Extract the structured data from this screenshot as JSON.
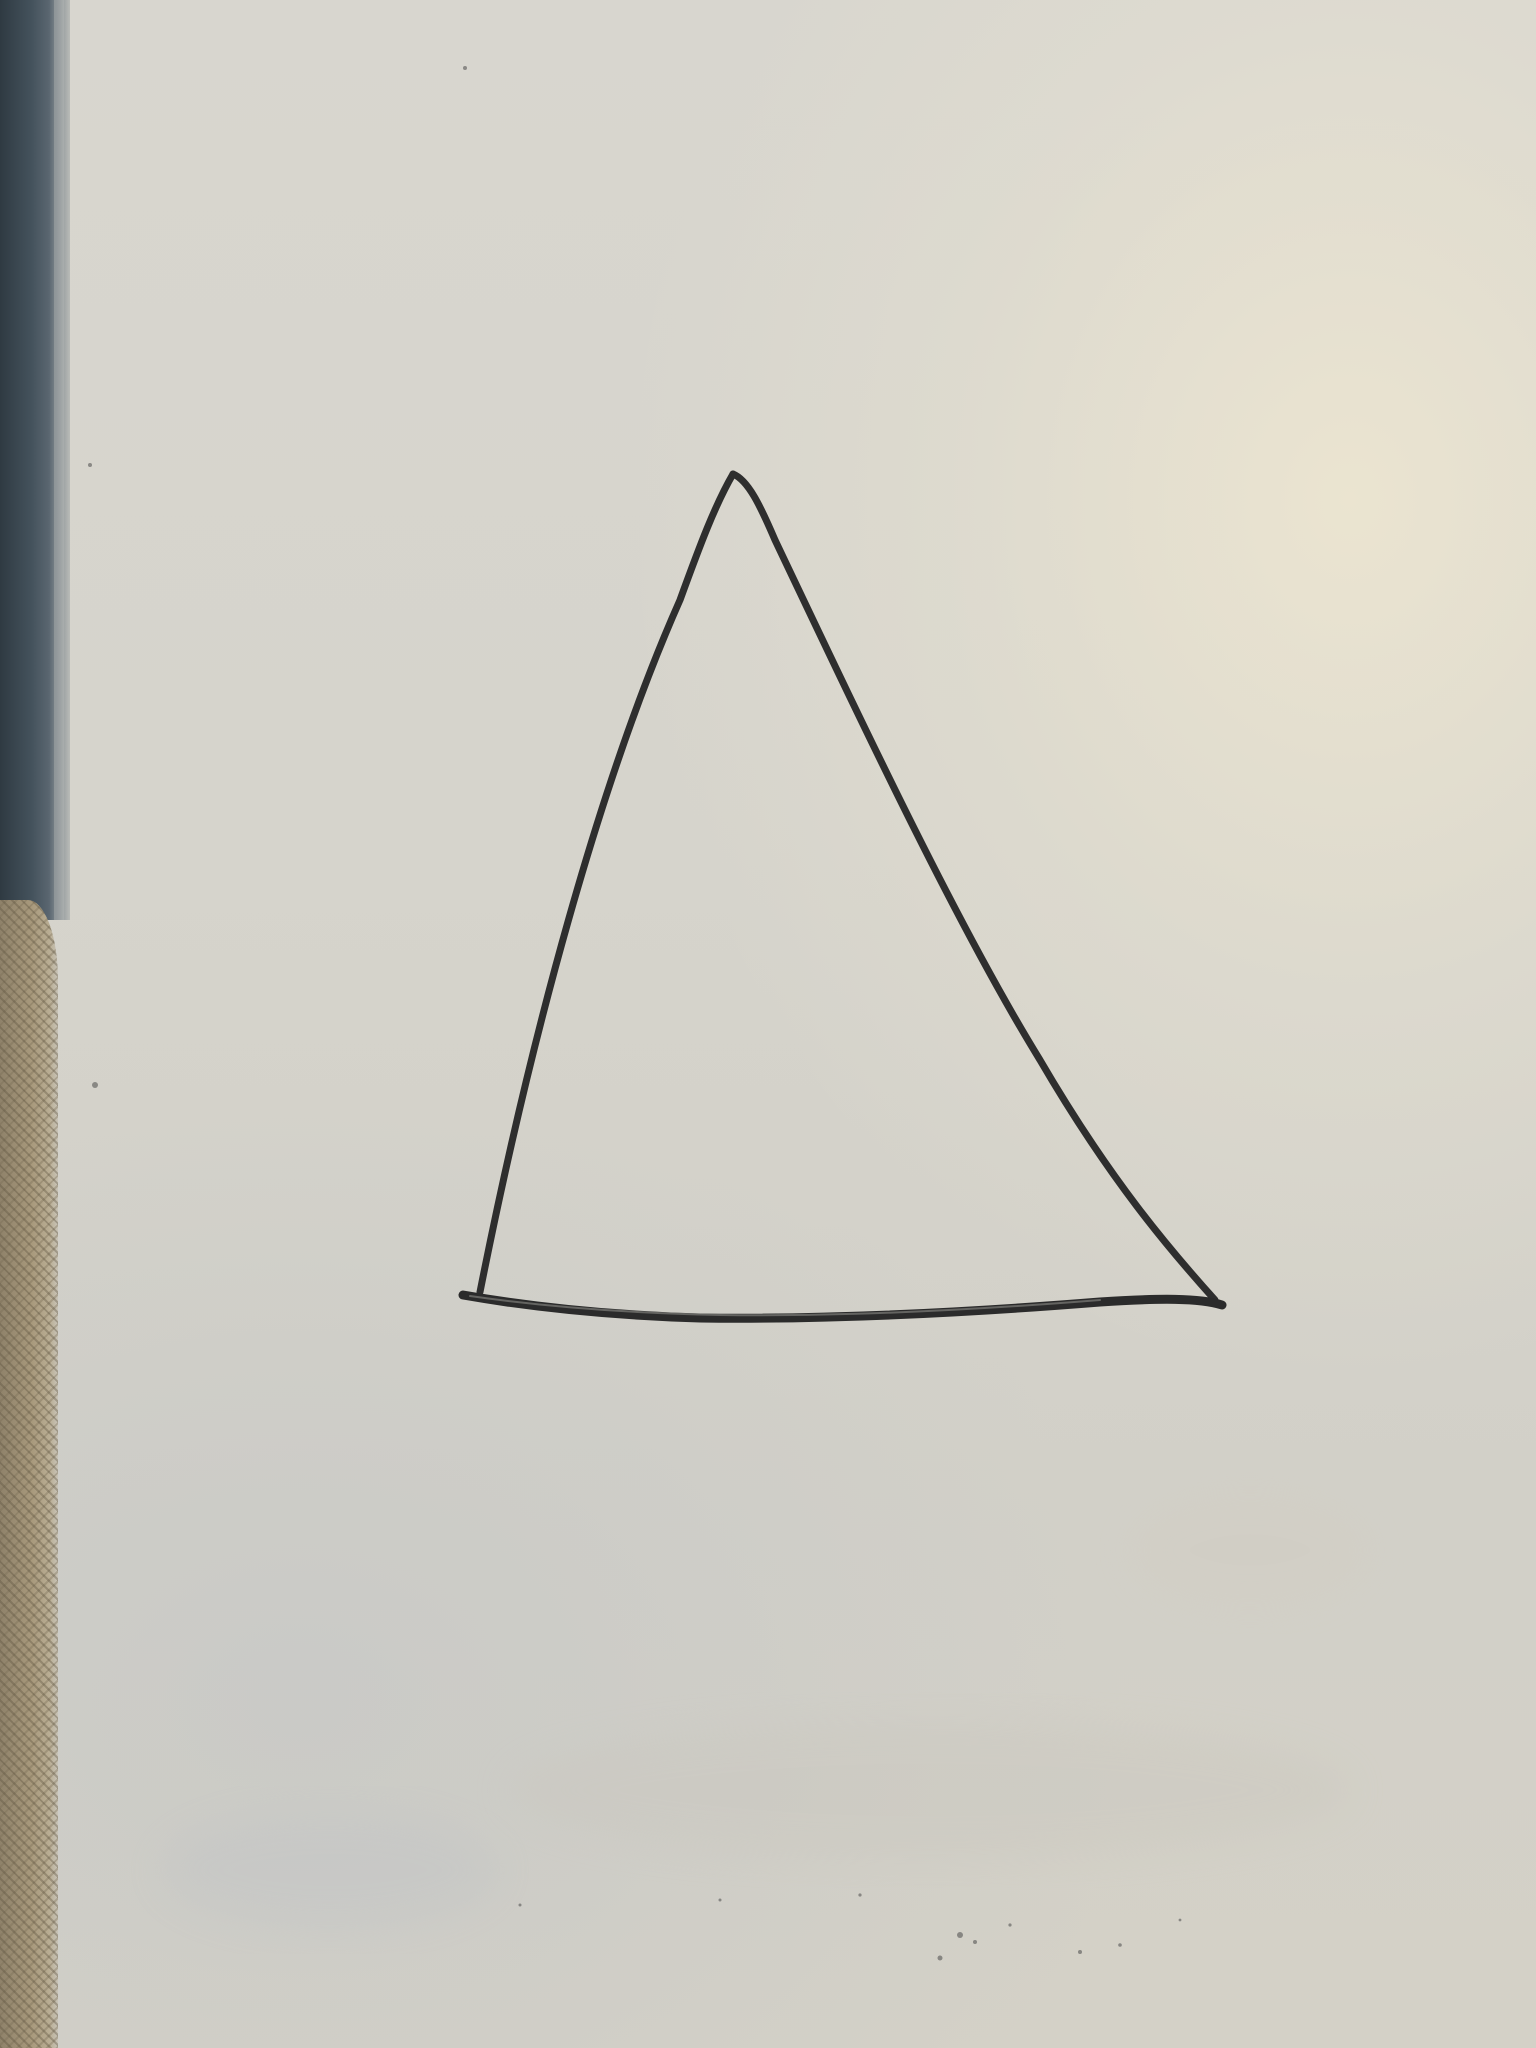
{
  "scene": {
    "description_free": true,
    "shape": "triangle",
    "marker_color": "#2b2b2b",
    "board_color": "#d6d4cc",
    "frame_color": "#3c4850",
    "fabric_color": "#a8997c"
  }
}
